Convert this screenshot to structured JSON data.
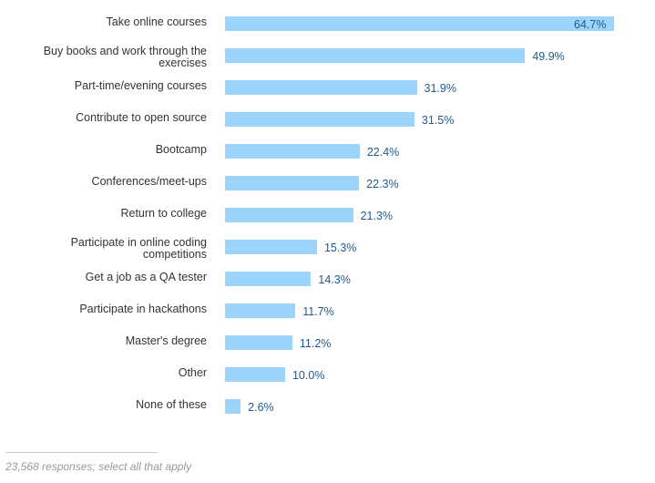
{
  "chart_data": {
    "type": "bar",
    "orientation": "horizontal",
    "categories": [
      "Take online courses",
      "Buy books and work through the exercises",
      "Part-time/evening courses",
      "Contribute to open source",
      "Bootcamp",
      "Conferences/meet-ups",
      "Return to college",
      "Participate in online coding competitions",
      "Get a job as a QA tester",
      "Participate in hackathons",
      "Master's degree",
      "Other",
      "None of these"
    ],
    "values": [
      64.7,
      49.9,
      31.9,
      31.5,
      22.4,
      22.3,
      21.3,
      15.3,
      14.3,
      11.7,
      11.2,
      10.0,
      2.6
    ],
    "value_labels": [
      "64.7%",
      "49.9%",
      "31.9%",
      "31.5%",
      "22.4%",
      "22.3%",
      "21.3%",
      "15.3%",
      "14.3%",
      "11.7%",
      "11.2%",
      "10.0%",
      "2.6%"
    ],
    "unit": "%",
    "xlim": [
      0,
      64.7
    ],
    "grid": false,
    "bar_color": "#9dd4fc",
    "label_color": "#1f5a8c"
  },
  "footnote": "23,568 responses; select all that apply"
}
